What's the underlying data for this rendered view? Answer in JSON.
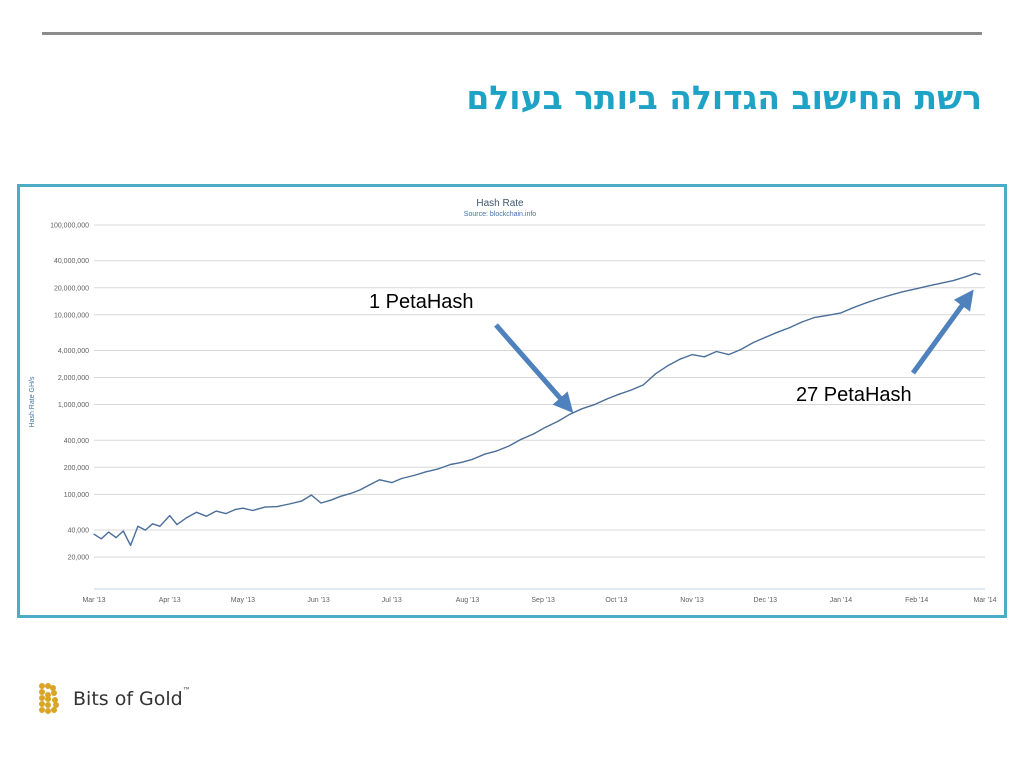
{
  "slide": {
    "title": "רשת החישוב הגדולה ביותר בעולם",
    "accent_color": "#1ea3c7",
    "frame_color": "#4bacc6",
    "arrow_color": "#4f81bd"
  },
  "callouts": {
    "first": "1 PetaHash",
    "second": "27 PetaHash"
  },
  "logo": {
    "text": "Bits of Gold",
    "trademark": "™",
    "mark_color": "#d9a527"
  },
  "chart_data": {
    "type": "line",
    "title": "Hash Rate",
    "subtitle": "Source: blockchain.info",
    "ylabel": "Hash Rate GH/s",
    "xlabel": "",
    "y_scale": "log",
    "ylim": [
      12000,
      100000000
    ],
    "x_range": [
      "2013-03-01",
      "2014-03-01"
    ],
    "grid": true,
    "line_color": "#4a6e99",
    "y_ticks": [
      {
        "value": 100000000,
        "label": "100,000,000"
      },
      {
        "value": 40000000,
        "label": "40,000,000"
      },
      {
        "value": 20000000,
        "label": "20,000,000"
      },
      {
        "value": 10000000,
        "label": "10,000,000"
      },
      {
        "value": 4000000,
        "label": "4,000,000"
      },
      {
        "value": 2000000,
        "label": "2,000,000"
      },
      {
        "value": 1000000,
        "label": "1,000,000"
      },
      {
        "value": 400000,
        "label": "400,000"
      },
      {
        "value": 200000,
        "label": "200,000"
      },
      {
        "value": 100000,
        "label": "100,000"
      },
      {
        "value": 40000,
        "label": "40,000"
      },
      {
        "value": 20000,
        "label": "20,000"
      }
    ],
    "x_ticks": [
      {
        "date": "2013-03-01",
        "label": "Mar '13"
      },
      {
        "date": "2013-04-01",
        "label": "Apr '13"
      },
      {
        "date": "2013-05-01",
        "label": "May '13"
      },
      {
        "date": "2013-06-01",
        "label": "Jun '13"
      },
      {
        "date": "2013-07-01",
        "label": "Jul '13"
      },
      {
        "date": "2013-08-01",
        "label": "Aug '13"
      },
      {
        "date": "2013-09-01",
        "label": "Sep '13"
      },
      {
        "date": "2013-10-01",
        "label": "Oct '13"
      },
      {
        "date": "2013-11-01",
        "label": "Nov '13"
      },
      {
        "date": "2013-12-01",
        "label": "Dec '13"
      },
      {
        "date": "2014-01-01",
        "label": "Jan '14"
      },
      {
        "date": "2014-02-01",
        "label": "Feb '14"
      },
      {
        "date": "2014-03-01",
        "label": "Mar '14"
      }
    ],
    "series": [
      {
        "points": [
          [
            "2013-03-01",
            36000
          ],
          [
            "2013-03-04",
            32000
          ],
          [
            "2013-03-07",
            38000
          ],
          [
            "2013-03-10",
            33000
          ],
          [
            "2013-03-13",
            39000
          ],
          [
            "2013-03-16",
            27000
          ],
          [
            "2013-03-19",
            44000
          ],
          [
            "2013-03-22",
            40000
          ],
          [
            "2013-03-25",
            47000
          ],
          [
            "2013-03-28",
            44000
          ],
          [
            "2013-04-01",
            58000
          ],
          [
            "2013-04-04",
            46000
          ],
          [
            "2013-04-08",
            55000
          ],
          [
            "2013-04-12",
            63000
          ],
          [
            "2013-04-16",
            57000
          ],
          [
            "2013-04-20",
            65000
          ],
          [
            "2013-04-24",
            61000
          ],
          [
            "2013-04-28",
            68000
          ],
          [
            "2013-05-01",
            70000
          ],
          [
            "2013-05-05",
            66000
          ],
          [
            "2013-05-10",
            72000
          ],
          [
            "2013-05-15",
            73000
          ],
          [
            "2013-05-20",
            78000
          ],
          [
            "2013-05-25",
            84000
          ],
          [
            "2013-05-29",
            98000
          ],
          [
            "2013-06-02",
            80000
          ],
          [
            "2013-06-06",
            86000
          ],
          [
            "2013-06-10",
            95000
          ],
          [
            "2013-06-14",
            102000
          ],
          [
            "2013-06-18",
            112000
          ],
          [
            "2013-06-22",
            128000
          ],
          [
            "2013-06-26",
            145000
          ],
          [
            "2013-07-01",
            135000
          ],
          [
            "2013-07-05",
            150000
          ],
          [
            "2013-07-10",
            162000
          ],
          [
            "2013-07-15",
            178000
          ],
          [
            "2013-07-20",
            192000
          ],
          [
            "2013-07-25",
            215000
          ],
          [
            "2013-07-29",
            225000
          ],
          [
            "2013-08-03",
            245000
          ],
          [
            "2013-08-08",
            280000
          ],
          [
            "2013-08-13",
            305000
          ],
          [
            "2013-08-18",
            345000
          ],
          [
            "2013-08-23",
            410000
          ],
          [
            "2013-08-28",
            470000
          ],
          [
            "2013-09-02",
            560000
          ],
          [
            "2013-09-07",
            650000
          ],
          [
            "2013-09-12",
            780000
          ],
          [
            "2013-09-17",
            900000
          ],
          [
            "2013-09-22",
            1000000
          ],
          [
            "2013-09-27",
            1150000
          ],
          [
            "2013-10-02",
            1300000
          ],
          [
            "2013-10-07",
            1450000
          ],
          [
            "2013-10-12",
            1650000
          ],
          [
            "2013-10-17",
            2200000
          ],
          [
            "2013-10-22",
            2700000
          ],
          [
            "2013-10-27",
            3200000
          ],
          [
            "2013-11-01",
            3600000
          ],
          [
            "2013-11-06",
            3400000
          ],
          [
            "2013-11-11",
            3900000
          ],
          [
            "2013-11-16",
            3600000
          ],
          [
            "2013-11-21",
            4100000
          ],
          [
            "2013-11-26",
            4900000
          ],
          [
            "2013-12-01",
            5600000
          ],
          [
            "2013-12-06",
            6400000
          ],
          [
            "2013-12-11",
            7200000
          ],
          [
            "2013-12-16",
            8300000
          ],
          [
            "2013-12-21",
            9300000
          ],
          [
            "2013-12-26",
            9800000
          ],
          [
            "2014-01-01",
            10500000
          ],
          [
            "2014-01-06",
            12000000
          ],
          [
            "2014-01-11",
            13500000
          ],
          [
            "2014-01-16",
            15000000
          ],
          [
            "2014-01-21",
            16500000
          ],
          [
            "2014-01-26",
            18000000
          ],
          [
            "2014-02-01",
            19500000
          ],
          [
            "2014-02-06",
            21000000
          ],
          [
            "2014-02-11",
            22500000
          ],
          [
            "2014-02-16",
            24000000
          ],
          [
            "2014-02-21",
            26500000
          ],
          [
            "2014-02-25",
            29000000
          ],
          [
            "2014-02-27",
            28000000
          ]
        ]
      }
    ]
  }
}
